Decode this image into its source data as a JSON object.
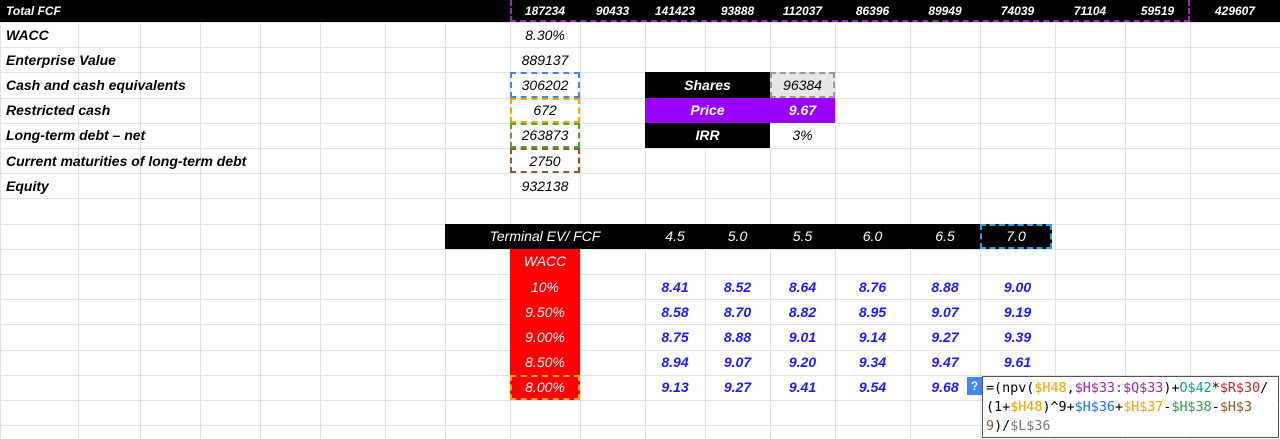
{
  "total_fcf": {
    "label": "Total FCF",
    "values": [
      "187234",
      "90433",
      "141423",
      "93888",
      "112037",
      "86396",
      "89949",
      "74039",
      "71104",
      "59519",
      "429607"
    ]
  },
  "inputs": [
    {
      "label": "WACC",
      "value": "8.30%"
    },
    {
      "label": "Enterprise Value",
      "value": "889137"
    },
    {
      "label": "Cash and cash equivalents",
      "value": "306202"
    },
    {
      "label": "Restricted cash",
      "value": "672"
    },
    {
      "label": "Long-term debt – net",
      "value": "263873"
    },
    {
      "label": "Current maturities of long-term debt",
      "value": "2750"
    },
    {
      "label": "Equity",
      "value": "932138"
    }
  ],
  "valuation": [
    {
      "label": "Shares",
      "value": "96384"
    },
    {
      "label": "Price",
      "value": "9.67"
    },
    {
      "label": "IRR",
      "value": "3%"
    }
  ],
  "sensitivity": {
    "corner": "Terminal EV/ FCF",
    "columns": [
      "4.5",
      "5.0",
      "5.5",
      "6.0",
      "6.5",
      "7.0"
    ],
    "row_header": "WACC",
    "rows": [
      {
        "wacc": "10%",
        "values": [
          "8.41",
          "8.52",
          "8.64",
          "8.76",
          "8.88",
          "9.00"
        ]
      },
      {
        "wacc": "9.50%",
        "values": [
          "8.58",
          "8.70",
          "8.82",
          "8.95",
          "9.07",
          "9.19"
        ]
      },
      {
        "wacc": "9.00%",
        "values": [
          "8.75",
          "8.88",
          "9.01",
          "9.14",
          "9.27",
          "9.39"
        ]
      },
      {
        "wacc": "8.50%",
        "values": [
          "8.94",
          "9.07",
          "9.20",
          "9.34",
          "9.47",
          "9.61"
        ]
      },
      {
        "wacc": "8.00%",
        "values": [
          "9.13",
          "9.27",
          "9.41",
          "9.54",
          "9.68"
        ]
      }
    ]
  },
  "formula": {
    "badge": "?",
    "tokens": [
      {
        "text": "=(npv(",
        "color": "#000000"
      },
      {
        "text": "$H48",
        "color": "#f4a300"
      },
      {
        "text": ",",
        "color": "#000000"
      },
      {
        "text": "$H$33:$Q$33",
        "color": "#9c27b0"
      },
      {
        "text": ")+",
        "color": "#000000"
      },
      {
        "text": "O$42",
        "color": "#00a0b0"
      },
      {
        "text": "*",
        "color": "#000000"
      },
      {
        "text": "$R$30",
        "color": "#c62828"
      },
      {
        "text": "/(1+",
        "color": "#000000"
      },
      {
        "text": "$H48",
        "color": "#f4a300"
      },
      {
        "text": ")^9+",
        "color": "#000000"
      },
      {
        "text": "$H$36",
        "color": "#1e6fe0"
      },
      {
        "text": "+",
        "color": "#000000"
      },
      {
        "text": "$H$37",
        "color": "#f4a300"
      },
      {
        "text": "-",
        "color": "#000000"
      },
      {
        "text": "$H$38",
        "color": "#2e9e3e"
      },
      {
        "text": "-",
        "color": "#000000"
      },
      {
        "text": "$H$39",
        "color": "#8d5a2b"
      },
      {
        "text": ")/",
        "color": "#000000"
      },
      {
        "text": "$L$36",
        "color": "#777777"
      }
    ]
  }
}
